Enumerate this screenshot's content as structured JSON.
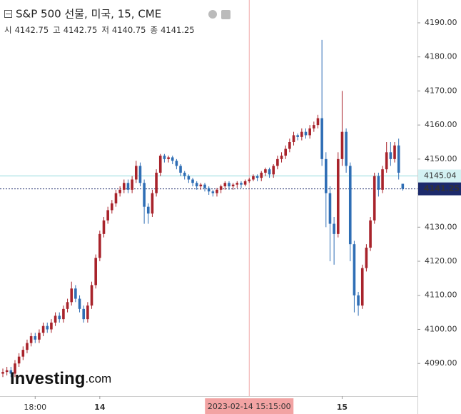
{
  "chart_data": {
    "type": "candlestick",
    "title": "S&P 500 선물, 미국, 15, CME",
    "ohlc": [
      {
        "label": "시",
        "value": 4142.75
      },
      {
        "label": "고",
        "value": 4142.75
      },
      {
        "label": "저",
        "value": 4140.75
      },
      {
        "label": "종",
        "value": 4141.25
      }
    ],
    "logo": {
      "brand": "Investing",
      "suffix": ".com"
    },
    "up_color": "#a8232b",
    "down_color": "#2f6eb5",
    "categories": [
      null,
      null,
      null,
      null,
      null,
      null,
      null,
      null,
      "18:00",
      null,
      null,
      null,
      null,
      null,
      null,
      null,
      null,
      null,
      null,
      null,
      null,
      null,
      null,
      null,
      "14",
      null,
      null,
      null,
      null,
      null,
      null,
      null,
      null,
      null,
      null,
      null,
      null,
      null,
      null,
      null,
      null,
      null,
      null,
      null,
      null,
      null,
      null,
      null,
      null,
      null,
      null,
      null,
      null,
      null,
      null,
      null,
      null,
      null,
      null,
      null,
      null,
      "2023-02-14 15:15:00",
      null,
      null,
      null,
      null,
      null,
      null,
      null,
      null,
      null,
      null,
      null,
      null,
      null,
      null,
      null,
      null,
      null,
      null,
      null,
      null,
      null,
      null,
      "15",
      null,
      null,
      null,
      null,
      null,
      null,
      null,
      null,
      null,
      null,
      null,
      null,
      null,
      null,
      null
    ],
    "open": [
      4087,
      4087.5,
      4088,
      4087,
      4090,
      4092,
      4094,
      4096,
      4098,
      4097,
      4099,
      4101,
      4100,
      4102,
      4104,
      4103,
      4106,
      4108,
      4112,
      4109,
      4106,
      4103,
      4107,
      4113,
      4121,
      4128,
      4132,
      4135,
      4137,
      4140,
      4141,
      4143,
      4141,
      4144,
      4148,
      4143,
      4136,
      4134,
      4140,
      4146,
      4151,
      4150,
      4150.5,
      4149.5,
      4148,
      4146,
      4145,
      4144,
      4143,
      4142,
      4142.5,
      4141.5,
      4140.5,
      4140,
      4141,
      4142,
      4143,
      4142,
      4142.5,
      4143,
      4142.5,
      4143.5,
      4144,
      4145,
      4144.5,
      4146,
      4147,
      4145.5,
      4148,
      4150,
      4151,
      4153,
      4155,
      4157,
      4156.5,
      4158,
      4157,
      4159,
      4160,
      4162,
      4150,
      4140,
      4131,
      4128,
      4150,
      4158,
      4148,
      4125,
      4110,
      4107,
      4118,
      4124,
      4132,
      4145,
      4141,
      4147,
      4152,
      4150,
      4154,
      4142.75
    ],
    "high": [
      4088.5,
      4089,
      4089,
      4091,
      4093,
      4095,
      4097,
      4099,
      4099,
      4100,
      4102,
      4102,
      4103,
      4105,
      4105,
      4107,
      4109,
      4114,
      4113,
      4110,
      4107,
      4108,
      4114,
      4122,
      4129,
      4133,
      4136,
      4138,
      4141,
      4142,
      4144,
      4144,
      4145,
      4149.5,
      4149,
      4144,
      4137,
      4141,
      4147,
      4151.5,
      4151.5,
      4151,
      4151,
      4150,
      4148.5,
      4146.5,
      4145.5,
      4144.5,
      4143.5,
      4143,
      4143,
      4142,
      4141,
      4141.5,
      4142.5,
      4143.5,
      4143.5,
      4143,
      4143.5,
      4143.5,
      4144,
      4144.5,
      4145.5,
      4145.5,
      4146.5,
      4147.5,
      4147.5,
      4148.5,
      4151,
      4152,
      4154,
      4156,
      4158,
      4157.5,
      4159,
      4159,
      4160,
      4161,
      4163,
      4185,
      4152,
      4142,
      4133,
      4152,
      4170,
      4159,
      4149,
      4126,
      4111,
      4119,
      4125,
      4133,
      4146,
      4146,
      4148,
      4155,
      4155,
      4155,
      4156,
      4142.75
    ],
    "low": [
      4086,
      4086.5,
      4086,
      4086,
      4089,
      4091,
      4093,
      4095,
      4096,
      4096,
      4098,
      4099,
      4099,
      4101,
      4102,
      4102,
      4105,
      4107,
      4108,
      4105,
      4102,
      4102,
      4106,
      4112,
      4120,
      4127,
      4131,
      4134,
      4136,
      4139,
      4140,
      4140,
      4140,
      4143,
      4142,
      4131,
      4131,
      4133,
      4139,
      4145,
      4149,
      4149,
      4148.5,
      4147,
      4145,
      4144,
      4143,
      4142,
      4141,
      4141,
      4140.5,
      4139.5,
      4139,
      4139,
      4140,
      4141,
      4141,
      4141,
      4141.5,
      4141.5,
      4142,
      4143,
      4143.5,
      4143.5,
      4143.5,
      4145,
      4144.5,
      4144.5,
      4147,
      4149,
      4150,
      4152,
      4154,
      4155.5,
      4155.5,
      4156,
      4156,
      4158,
      4159,
      4148,
      4130,
      4120,
      4119,
      4127,
      4148,
      4146,
      4120,
      4105,
      4104,
      4106,
      4117,
      4123,
      4131,
      4139,
      4140,
      4146,
      4148,
      4149,
      4144,
      4140.75
    ],
    "close": [
      4087.5,
      4088,
      4087,
      4090,
      4092,
      4094,
      4096,
      4098,
      4097,
      4099,
      4101,
      4100,
      4102,
      4104,
      4103,
      4106,
      4108,
      4112,
      4109,
      4106,
      4103,
      4107,
      4113,
      4121,
      4128,
      4132,
      4135,
      4137,
      4140,
      4141,
      4143,
      4141,
      4144,
      4148,
      4143,
      4136,
      4134,
      4140,
      4146,
      4151,
      4150,
      4150.5,
      4149.5,
      4148,
      4146,
      4145,
      4144,
      4143,
      4142,
      4142.5,
      4141.5,
      4140.5,
      4140,
      4141,
      4142,
      4143,
      4142,
      4142.5,
      4143,
      4142.5,
      4143.5,
      4144,
      4145,
      4144.5,
      4146,
      4147,
      4145.5,
      4148,
      4150,
      4151,
      4153,
      4155,
      4157,
      4156.5,
      4158,
      4157,
      4159,
      4160,
      4162,
      4150,
      4140,
      4131,
      4128,
      4150,
      4158,
      4148,
      4125,
      4110,
      4107,
      4118,
      4124,
      4132,
      4145,
      4141,
      4147,
      4152,
      4150,
      4154,
      4146,
      4141.25
    ],
    "ylim": [
      4080.4,
      4196.7
    ],
    "yticks": [
      {
        "value": 4090,
        "label": "4090.00"
      },
      {
        "value": 4100,
        "label": "4100.00"
      },
      {
        "value": 4110,
        "label": "4110.00"
      },
      {
        "value": 4120,
        "label": "4120.00"
      },
      {
        "value": 4130,
        "label": "4130.00"
      },
      {
        "value": 4140,
        "label": "4140.00"
      },
      {
        "value": 4150,
        "label": "4150.00"
      },
      {
        "value": 4160,
        "label": "4160.00"
      },
      {
        "value": 4170,
        "label": "4170.00"
      },
      {
        "value": 4180,
        "label": "4180.00"
      },
      {
        "value": 4190,
        "label": "4190.00"
      }
    ],
    "crosshair": {
      "category_index": 61,
      "y": 4145.04
    },
    "last_price": 4141.25
  }
}
